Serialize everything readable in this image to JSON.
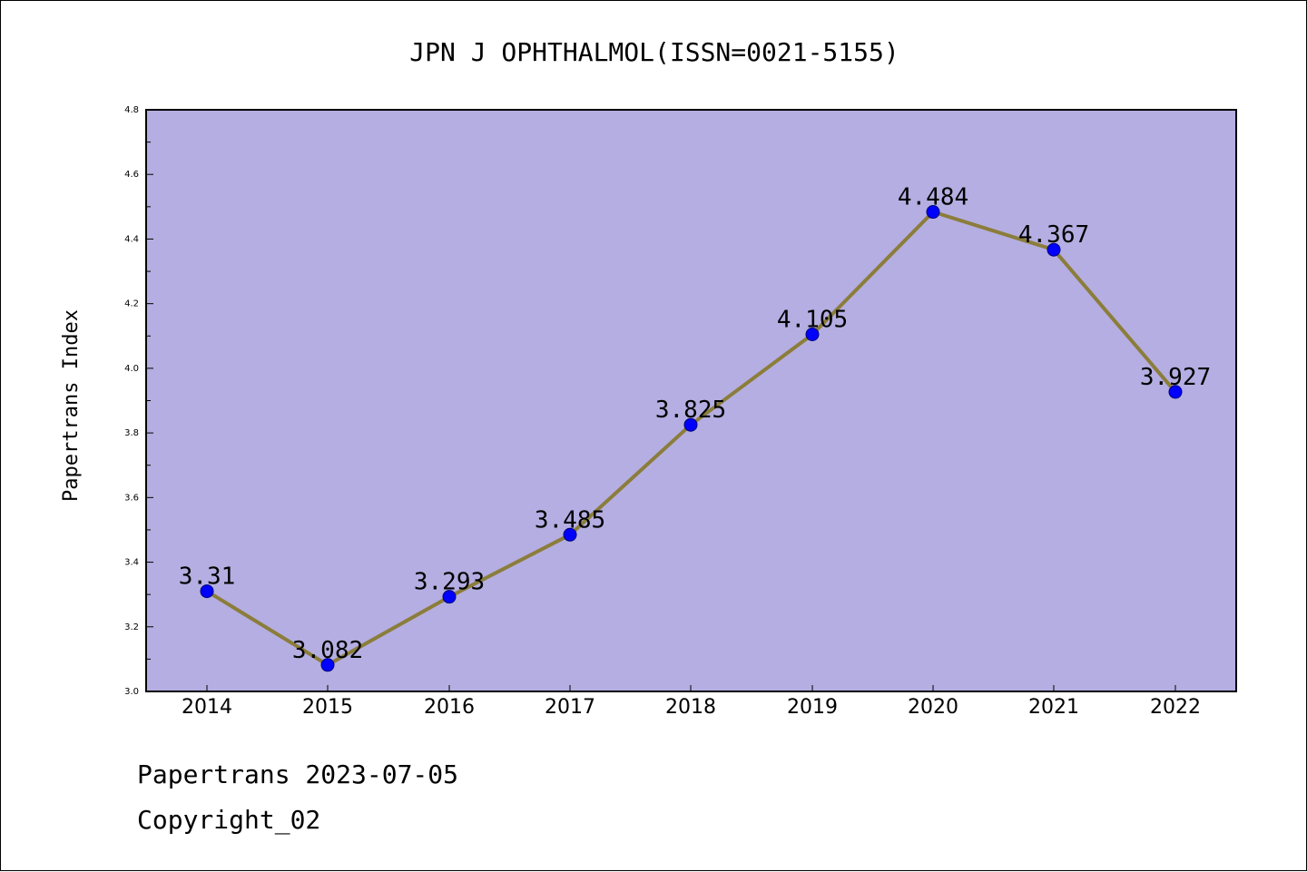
{
  "chart_data": {
    "type": "line",
    "title": "JPN J OPHTHALMOL(ISSN=0021-5155)",
    "xlabel": "",
    "ylabel": "Papertrans Index",
    "categories": [
      "2014",
      "2015",
      "2016",
      "2017",
      "2018",
      "2019",
      "2020",
      "2021",
      "2022"
    ],
    "values": [
      3.31,
      3.082,
      3.293,
      3.485,
      3.825,
      4.105,
      4.484,
      4.367,
      3.927
    ],
    "data_labels": [
      "3.31",
      "3.082",
      "3.293",
      "3.485",
      "3.825",
      "4.105",
      "4.484",
      "4.367",
      "3.927"
    ],
    "ylim": [
      3.0,
      4.8
    ],
    "yticks": [
      "3.0",
      "3.2",
      "3.4",
      "3.6",
      "3.8",
      "4.0",
      "4.2",
      "4.4",
      "4.6",
      "4.8"
    ],
    "grid": false,
    "colors": {
      "plot_background": "#b4aee2",
      "line": "#8b7d3a",
      "marker_fill": "#0000ff",
      "marker_stroke": "#00007a",
      "axis": "#000000"
    }
  },
  "footer": {
    "line1": "Papertrans 2023-07-05",
    "line2": "Copyright_02"
  }
}
